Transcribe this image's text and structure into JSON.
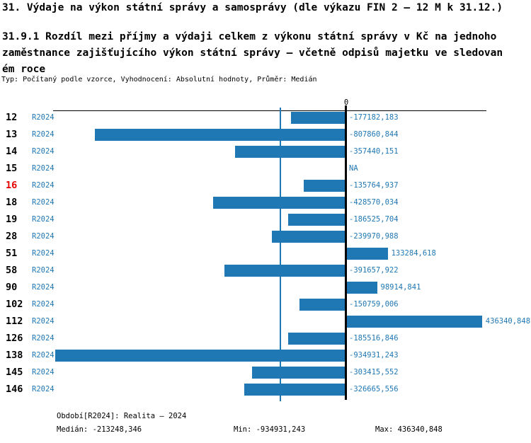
{
  "page": {
    "title": "31. Výdaje na výkon státní správy a samosprávy (dle výkazu FIN 2 – 12 M k 31.12.)",
    "subtitle_lines": [
      "31.9.1 Rozdíl mezi příjmy a výdaji celkem z výkonu státní správy v Kč na jednoho",
      "zaměstnance zajišťujícího výkon státní správy – včetně odpisů majetku ve sledovan",
      "ém roce"
    ],
    "meta": "Typ: Počítaný podle vzorce, Vyhodnocení: Absolutní hodnoty, Průměr: Medián"
  },
  "chart_data": {
    "type": "bar",
    "orientation": "horizontal",
    "zero_tick_label": "0",
    "series_name": "R2024",
    "highlighted_category": "16",
    "categories": [
      "12",
      "13",
      "14",
      "15",
      "16",
      "18",
      "19",
      "28",
      "51",
      "58",
      "90",
      "102",
      "112",
      "126",
      "138",
      "145",
      "146"
    ],
    "values": [
      -177182.183,
      -807860.844,
      -357440.151,
      null,
      -135764.937,
      -428570.034,
      -186525.704,
      -239970.988,
      133284.618,
      -391657.922,
      98914.841,
      -150759.006,
      436340.848,
      -185516.846,
      -934931.243,
      -303415.552,
      -326665.556
    ],
    "value_labels": [
      "-177182,183",
      "-807860,844",
      "-357440,151",
      "NA",
      "-135764,937",
      "-428570,034",
      "-186525,704",
      "-239970,988",
      "133284,618",
      "-391657,922",
      "98914,841",
      "-150759,006",
      "436340,848",
      "-185516,846",
      "-934931,243",
      "-303415,552",
      "-326665,556"
    ],
    "xlim": [
      -934931.243,
      436340.848
    ],
    "median": -213248.346,
    "grid": false,
    "legend": "none",
    "colors": {
      "bar": "#1f77b4",
      "label_text": "#1f77b4",
      "highlight": "#e60000",
      "axis": "#000000",
      "median_line": "#1f77b4"
    }
  },
  "footer": {
    "period": "Období[R2024]: Realita – 2024",
    "median": "Medián: -213248,346",
    "min": "Min: -934931,243",
    "max": "Max: 436340,848"
  }
}
